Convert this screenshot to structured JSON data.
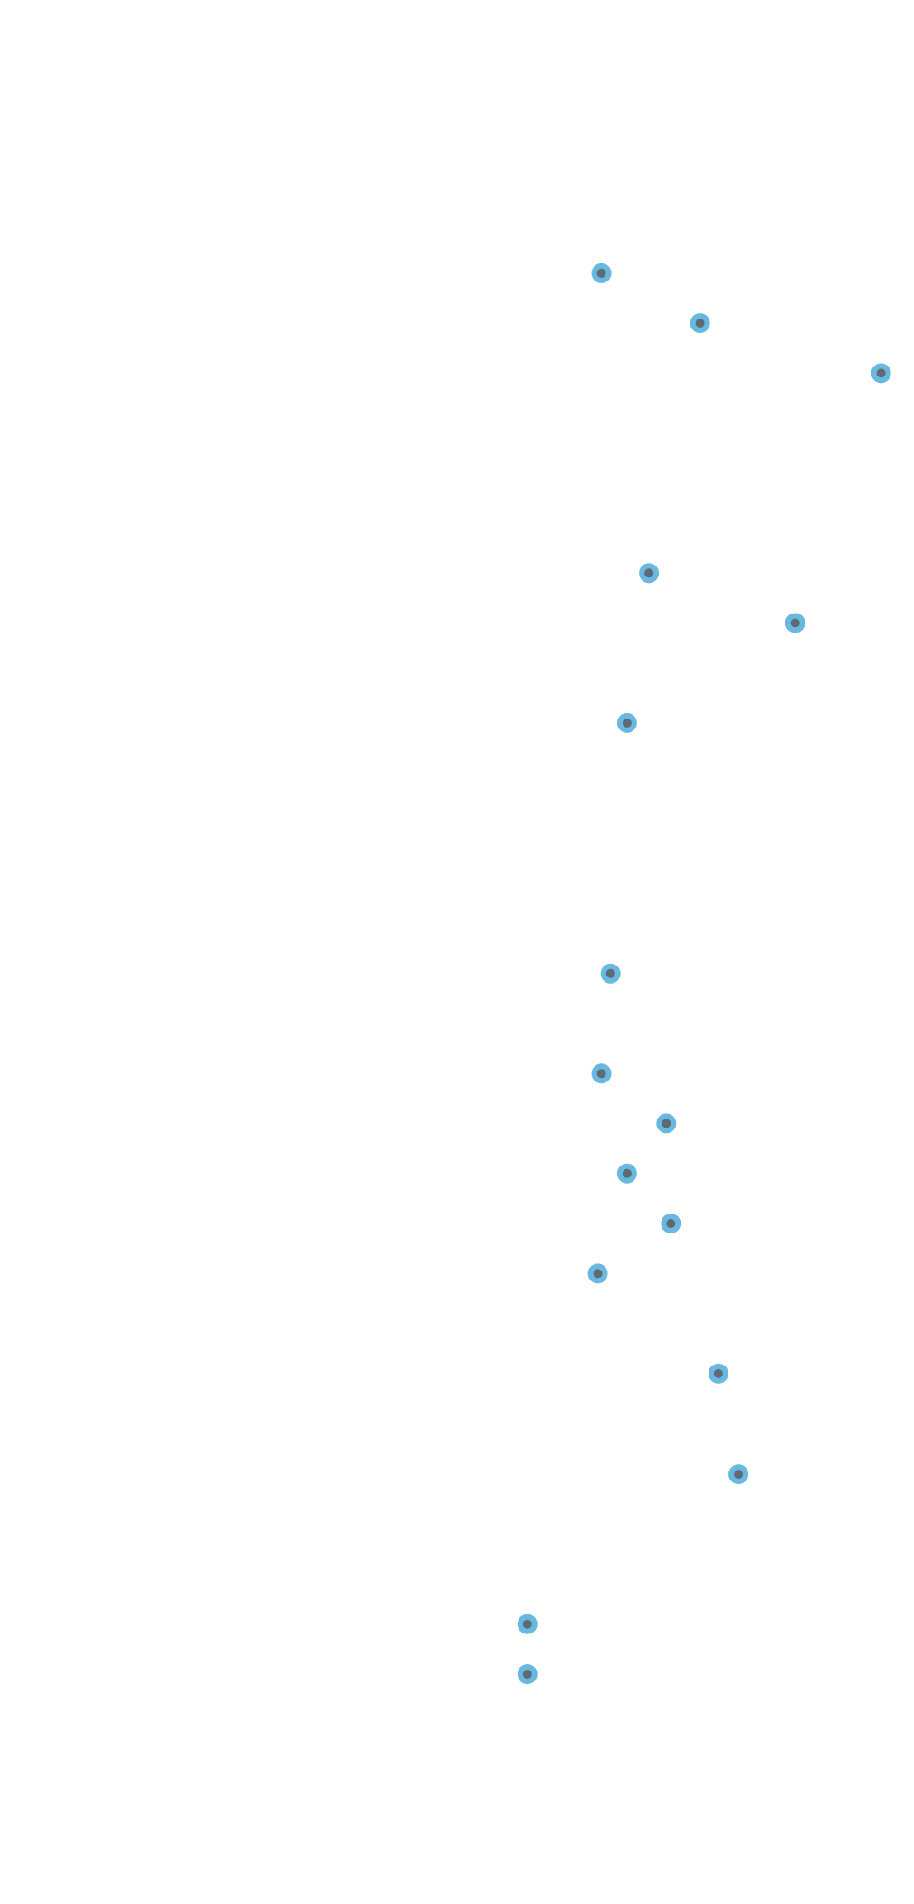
{
  "chart_data": {
    "type": "scatter",
    "xlim": [
      0,
      1
    ],
    "ylim": [
      0,
      1
    ],
    "grid": false,
    "marker": {
      "outer_color": "#69b8e0",
      "inner_color": "#5e6a74"
    },
    "points": [
      {
        "x": 0.658,
        "y": 0.8565
      },
      {
        "x": 0.766,
        "y": 0.8303
      },
      {
        "x": 0.964,
        "y": 0.804
      },
      {
        "x": 0.71,
        "y": 0.699
      },
      {
        "x": 0.87,
        "y": 0.6728
      },
      {
        "x": 0.686,
        "y": 0.6203
      },
      {
        "x": 0.668,
        "y": 0.4887
      },
      {
        "x": 0.658,
        "y": 0.4362
      },
      {
        "x": 0.729,
        "y": 0.41
      },
      {
        "x": 0.686,
        "y": 0.3837
      },
      {
        "x": 0.734,
        "y": 0.3574
      },
      {
        "x": 0.654,
        "y": 0.3311
      },
      {
        "x": 0.786,
        "y": 0.2786
      },
      {
        "x": 0.808,
        "y": 0.2257
      },
      {
        "x": 0.577,
        "y": 0.147
      },
      {
        "x": 0.577,
        "y": 0.1207
      }
    ]
  }
}
